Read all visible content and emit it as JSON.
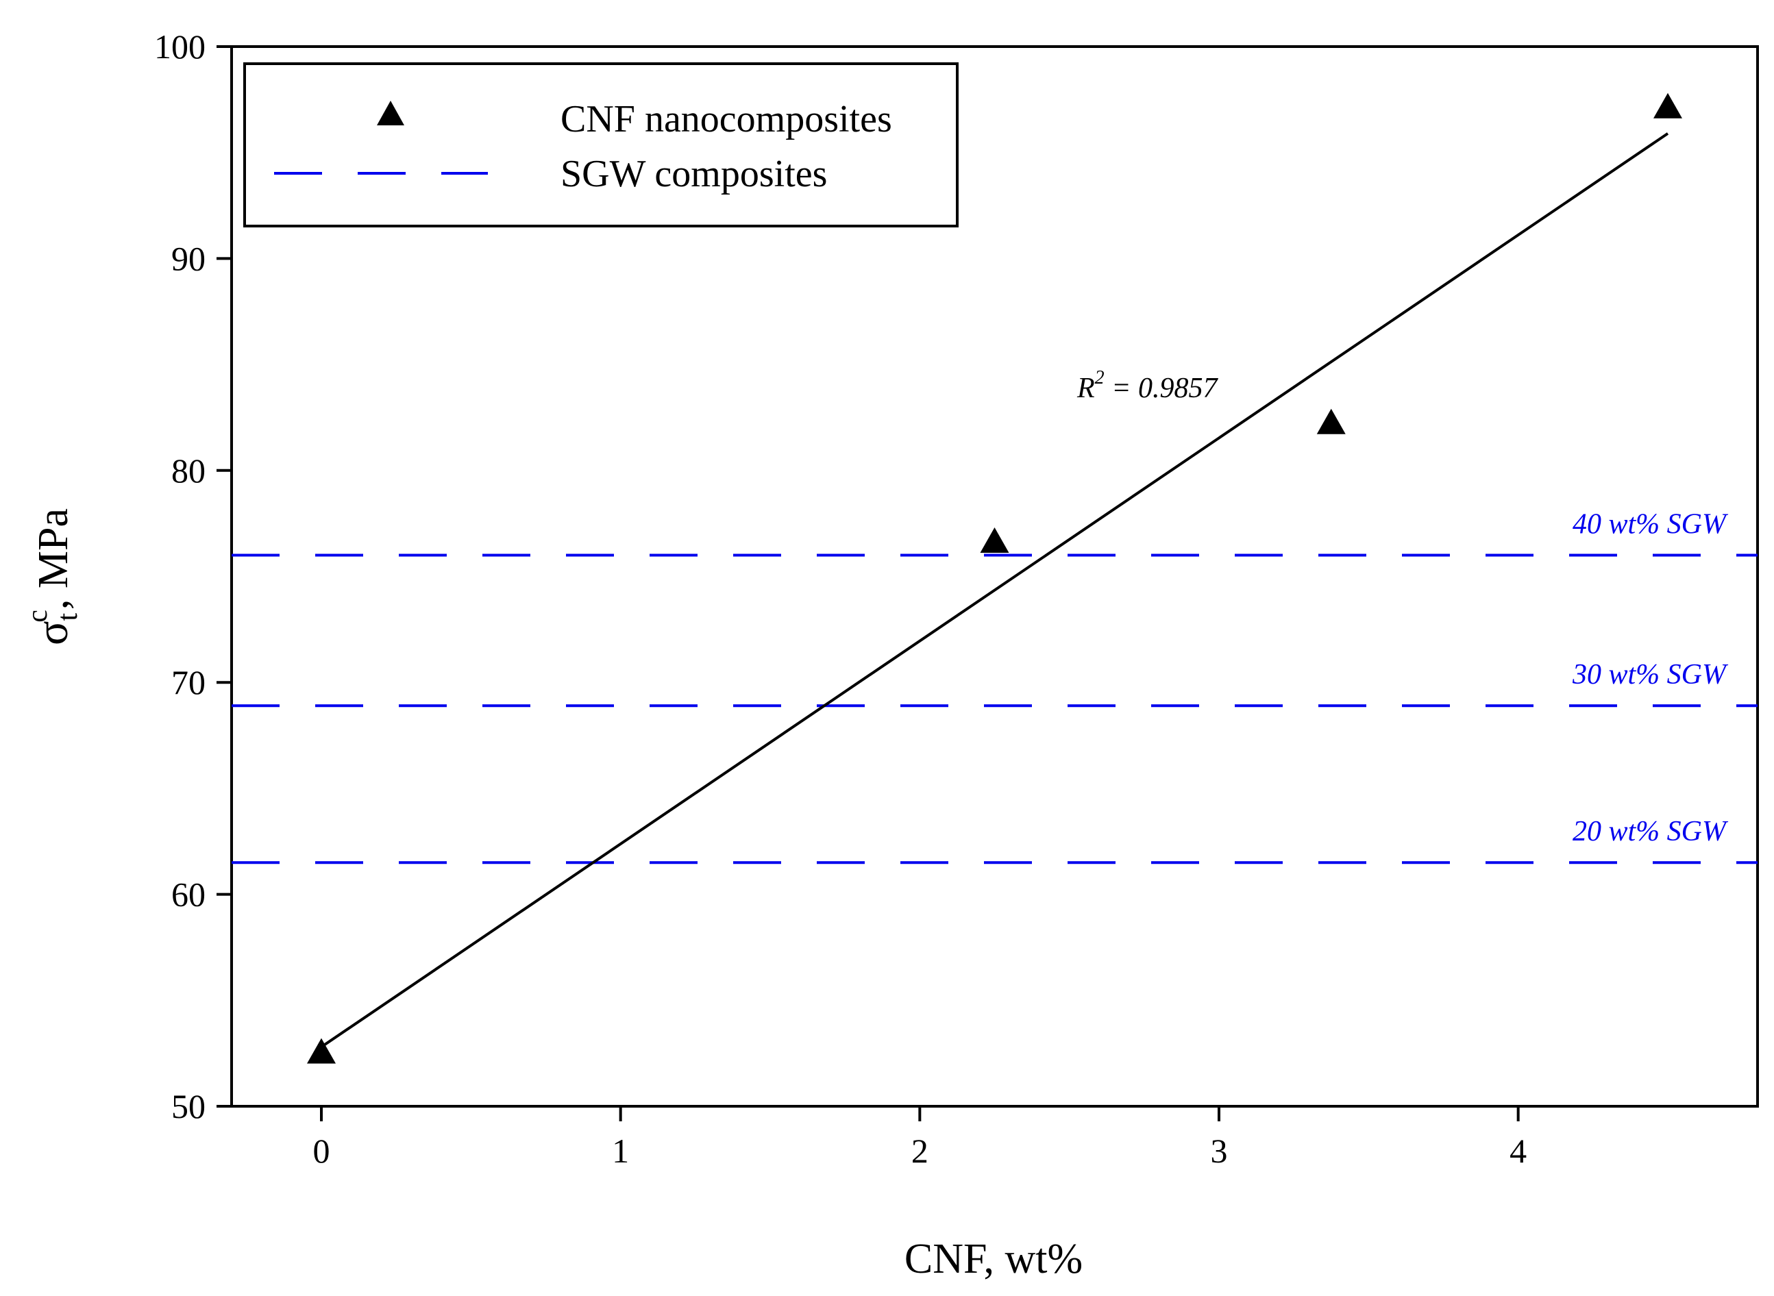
{
  "chart_data": {
    "type": "scatter",
    "title": "",
    "xlabel": "CNF, wt%",
    "ylabel": {
      "symbol": "σ",
      "superscript": "c",
      "subscript": "t",
      "suffix": ", MPa"
    },
    "xlim": [
      -0.3,
      4.8
    ],
    "ylim": [
      50,
      100
    ],
    "xticks": [
      0,
      1,
      2,
      3,
      4
    ],
    "yticks": [
      50,
      60,
      70,
      80,
      90,
      100
    ],
    "grid": false,
    "legend_position": "top-left",
    "series": [
      {
        "name": "CNF nanocomposites",
        "marker": "triangle",
        "color": "#000000",
        "x": [
          0,
          2.25,
          3.375,
          4.5
        ],
        "y": [
          52.5,
          76.6,
          82.2,
          97.1
        ]
      }
    ],
    "fit_line": {
      "x": [
        0,
        4.5
      ],
      "y": [
        52.8,
        95.9
      ],
      "color": "#000000",
      "annotation": {
        "prefix": "R",
        "superscript": "2",
        "suffix": " = 0.9857"
      }
    },
    "reference_lines": [
      {
        "name": "SGW composites",
        "value": 61.5,
        "label": "20 wt% SGW",
        "color": "#0000ee"
      },
      {
        "name": "SGW composites",
        "value": 68.9,
        "label": "30 wt% SGW",
        "color": "#0000ee"
      },
      {
        "name": "SGW composites",
        "value": 76.0,
        "label": "40 wt% SGW",
        "color": "#0000ee"
      }
    ],
    "legend": [
      {
        "label": "CNF nanocomposites",
        "kind": "triangle",
        "color": "#000000"
      },
      {
        "label": "SGW composites",
        "kind": "dashed-line",
        "color": "#0000ee"
      }
    ]
  }
}
